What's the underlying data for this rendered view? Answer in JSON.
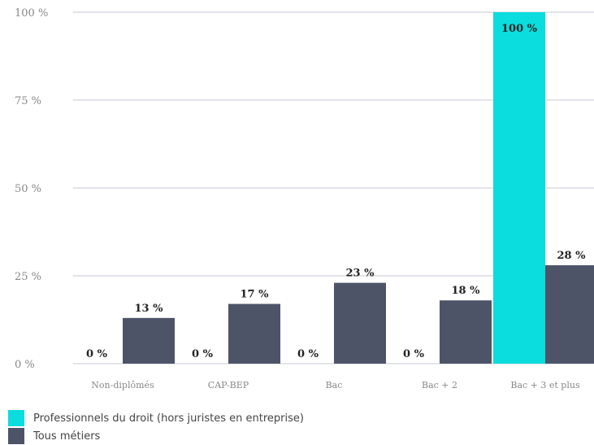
{
  "chart_data": {
    "type": "bar",
    "categories": [
      "Non-diplômés",
      "CAP-BEP",
      "Bac",
      "Bac + 2",
      "Bac + 3 et plus"
    ],
    "series": [
      {
        "name": "Professionnels du droit (hors juristes en entreprise)",
        "values": [
          0,
          0,
          0,
          0,
          100
        ],
        "color": "#0bdcde"
      },
      {
        "name": "Tous métiers",
        "values": [
          13,
          17,
          23,
          18,
          28
        ],
        "color": "#4e5468"
      }
    ],
    "y_ticks": [
      "0 %",
      "25 %",
      "50 %",
      "75 %",
      "100 %"
    ],
    "y_tick_values": [
      0,
      25,
      50,
      75,
      100
    ],
    "data_label_suffix": " %",
    "ylim": [
      0,
      100
    ],
    "grid": true,
    "legend_position": "bottom-left"
  }
}
